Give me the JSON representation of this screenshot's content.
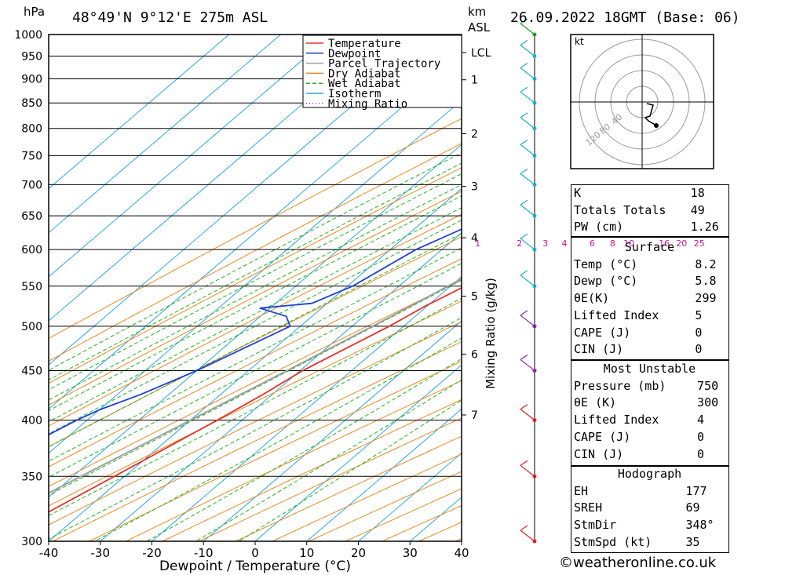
{
  "header": {
    "pressure_unit": "hPa",
    "location": "48°49'N  9°12'E  275m  ASL",
    "height_unit_top": "km",
    "height_unit_bottom": "ASL",
    "datetime": "26.09.2022  18GMT  (Base: 06)"
  },
  "legend": [
    "Temperature",
    "Dewpoint",
    "Parcel Trajectory",
    "Dry Adiabat",
    "Wet Adiabat",
    "Isotherm",
    "Mixing Ratio"
  ],
  "colors": {
    "temperature": "#e8302a",
    "dewpoint": "#1e3fd8",
    "parcel": "#a0a0a0",
    "dry_adiabat": "#e88a20",
    "wet_adiabat": "#22b322",
    "isotherm": "#2aa8e0",
    "mixing_ratio": "#c8148c"
  },
  "chart_data": {
    "type": "line",
    "xlabel": "Dewpoint / Temperature (°C)",
    "ylabel": "hPa",
    "secondary_ylabel": "Mixing Ratio (g/kg)",
    "xlim": [
      -40,
      40
    ],
    "ylim": [
      1000,
      300
    ],
    "x_ticks": [
      -40,
      -30,
      -20,
      -10,
      0,
      10,
      20,
      30,
      40
    ],
    "pressure_levels": [
      300,
      350,
      400,
      450,
      500,
      550,
      600,
      650,
      700,
      750,
      800,
      850,
      900,
      950,
      1000
    ],
    "height_km_labels": [
      {
        "km": "7",
        "p": 405
      },
      {
        "km": "6",
        "p": 468
      },
      {
        "km": "5",
        "p": 537
      },
      {
        "km": "4",
        "p": 617
      },
      {
        "km": "3",
        "p": 697
      },
      {
        "km": "2",
        "p": 790
      },
      {
        "km": "1",
        "p": 898
      },
      {
        "km": "LCL",
        "p": 958
      }
    ],
    "mixing_ratio_labels": [
      "1",
      "2",
      "3",
      "4",
      "6",
      "8",
      "10",
      "16",
      "20",
      "25"
    ],
    "mixing_ratio_values": [
      1,
      2,
      3,
      4,
      6,
      8,
      10,
      16,
      20,
      25
    ],
    "series": [
      {
        "name": "Temperature",
        "points": [
          [
            1000,
            8.6
          ],
          [
            950,
            6.0
          ],
          [
            925,
            4.7
          ],
          [
            900,
            4.3
          ],
          [
            850,
            1.0
          ],
          [
            800,
            -1.8
          ],
          [
            775,
            -2.5
          ],
          [
            750,
            -1.8
          ],
          [
            725,
            -2.6
          ],
          [
            700,
            -5.1
          ],
          [
            675,
            -6.6
          ],
          [
            650,
            -8.0
          ],
          [
            600,
            -12.6
          ],
          [
            550,
            -17.2
          ],
          [
            525,
            -20.3
          ],
          [
            500,
            -22.8
          ],
          [
            450,
            -29.5
          ],
          [
            425,
            -31.8
          ],
          [
            400,
            -34.8
          ],
          [
            350,
            -42.0
          ],
          [
            300,
            -50.5
          ]
        ]
      },
      {
        "name": "Dewpoint",
        "points": [
          [
            1000,
            5.8
          ],
          [
            950,
            4.6
          ],
          [
            925,
            3.2
          ],
          [
            910,
            2.3
          ],
          [
            900,
            -1.9
          ],
          [
            850,
            -3.4
          ],
          [
            800,
            -5.6
          ],
          [
            775,
            -7.0
          ],
          [
            760,
            -9.8
          ],
          [
            750,
            -8.8
          ],
          [
            725,
            -15.6
          ],
          [
            710,
            -17.7
          ],
          [
            700,
            -15.5
          ],
          [
            690,
            -19.0
          ],
          [
            680,
            -24.5
          ],
          [
            650,
            -28.0
          ],
          [
            600,
            -35.0
          ],
          [
            550,
            -39.0
          ],
          [
            528,
            -43.0
          ],
          [
            522,
            -52.0
          ],
          [
            512,
            -45.0
          ],
          [
            500,
            -42.0
          ],
          [
            450,
            -50.0
          ],
          [
            425,
            -55.5
          ],
          [
            410,
            -60.0
          ],
          [
            400,
            -62.0
          ],
          [
            300,
            -80.0
          ]
        ]
      },
      {
        "name": "Parcel Trajectory",
        "points": [
          [
            1000,
            8.2
          ],
          [
            958,
            5.0
          ],
          [
            900,
            2.3
          ],
          [
            850,
            0.0
          ],
          [
            800,
            -2.9
          ],
          [
            750,
            -5.2
          ],
          [
            700,
            -8.0
          ],
          [
            650,
            -11.5
          ],
          [
            600,
            -15.5
          ],
          [
            550,
            -20.5
          ],
          [
            500,
            -26.0
          ],
          [
            450,
            -32.5
          ],
          [
            400,
            -40.0
          ],
          [
            350,
            -48.5
          ],
          [
            300,
            -58.0
          ]
        ]
      }
    ]
  },
  "wind_barbs_pressures": [
    300,
    350,
    400,
    450,
    500,
    550,
    600,
    650,
    700,
    750,
    800,
    850,
    900,
    950,
    1000
  ],
  "hodograph": {
    "unit": "kt",
    "ring_labels": [
      "40",
      "80",
      "120"
    ]
  },
  "indices": {
    "k_label": "K",
    "k_value": "18",
    "tt_label": "Totals Totals",
    "tt_value": "49",
    "pw_label": "PW (cm)",
    "pw_value": "1.26"
  },
  "surface": {
    "title": "Surface",
    "temp_label": "Temp (°C)",
    "temp_value": "8.2",
    "dewp_label": "Dewp (°C)",
    "dewp_value": "5.8",
    "theta_label": "θE(K)",
    "theta_value": "299",
    "li_label": "Lifted Index",
    "li_value": "5",
    "cape_label": "CAPE (J)",
    "cape_value": "0",
    "cin_label": "CIN (J)",
    "cin_value": "0"
  },
  "most_unstable": {
    "title": "Most Unstable",
    "pressure_label": "Pressure (mb)",
    "pressure_value": "750",
    "theta_label": "θE (K)",
    "theta_value": "300",
    "li_label": "Lifted Index",
    "li_value": "4",
    "cape_label": "CAPE (J)",
    "cape_value": "0",
    "cin_label": "CIN (J)",
    "cin_value": "0"
  },
  "hodograph_indices": {
    "title": "Hodograph",
    "eh_label": "EH",
    "eh_value": "177",
    "sreh_label": "SREH",
    "sreh_value": "69",
    "stmdir_label": "StmDir",
    "stmdir_value": "348°",
    "stmspd_label": "StmSpd (kt)",
    "stmspd_value": "35"
  },
  "footer": "©weatheronline.co.uk"
}
